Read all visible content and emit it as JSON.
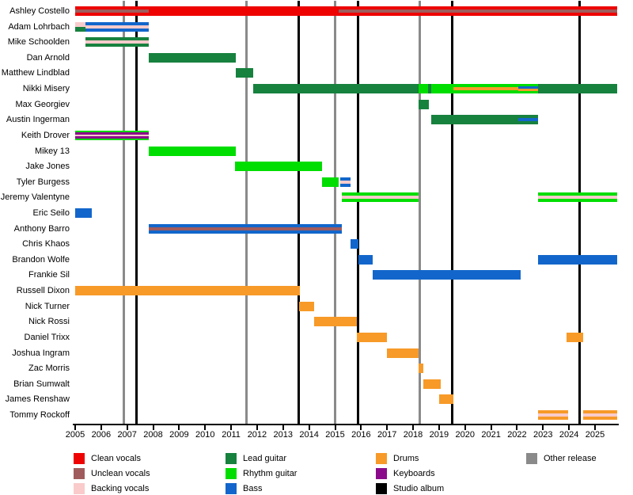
{
  "chart_data": {
    "type": "timeline",
    "description": "Band members timeline gantt chart, one row per member, colored bars for roles, vertical lines for releases",
    "x_axis": {
      "start": 2005,
      "end": 2025.85,
      "tick_years": [
        2005,
        2006,
        2007,
        2008,
        2009,
        2010,
        2011,
        2012,
        2013,
        2014,
        2015,
        2016,
        2017,
        2018,
        2019,
        2020,
        2021,
        2022,
        2023,
        2024,
        2025
      ],
      "grid": false
    },
    "roles": {
      "clean_vocals": {
        "label": "Clean vocals",
        "color": "#ee0202"
      },
      "unclean_vocals": {
        "label": "Unclean vocals",
        "color": "#a05c5c"
      },
      "backing_vocals": {
        "label": "Backing vocals",
        "color": "#f9cbcb"
      },
      "lead_guitar": {
        "label": "Lead guitar",
        "color": "#17813e"
      },
      "rhythm_guitar": {
        "label": "Rhythm guitar",
        "color": "#00dd00"
      },
      "bass": {
        "label": "Bass",
        "color": "#1266cb"
      },
      "drums": {
        "label": "Drums",
        "color": "#f79a28"
      },
      "keyboards": {
        "label": "Keyboards",
        "color": "#8b0a8b"
      },
      "studio_album": {
        "label": "Studio album",
        "color": "#000000"
      },
      "other_release": {
        "label": "Other release",
        "color": "#8a8a8a"
      }
    },
    "members": [
      {
        "name": "Ashley Costello",
        "segments": [
          {
            "start": 2005.0,
            "end": 2007.83,
            "layers": [
              "clean_vocals",
              "unclean_vocals",
              "clean_vocals"
            ]
          },
          {
            "start": 2007.83,
            "end": 2015.13,
            "layers": [
              "clean_vocals"
            ]
          },
          {
            "start": 2015.13,
            "end": 2025.85,
            "layers": [
              "clean_vocals",
              "unclean_vocals",
              "clean_vocals"
            ]
          }
        ]
      },
      {
        "name": "Adam Lohrbach",
        "segments": [
          {
            "start": 2005.0,
            "end": 2005.4,
            "layers": [
              "backing_vocals",
              "lead_guitar"
            ]
          },
          {
            "start": 2005.4,
            "end": 2007.83,
            "layers": [
              "bass",
              "backing_vocals",
              "bass"
            ]
          }
        ]
      },
      {
        "name": "Mike Schoolden",
        "segments": [
          {
            "start": 2005.4,
            "end": 2007.83,
            "layers": [
              "lead_guitar",
              "backing_vocals",
              "lead_guitar"
            ]
          }
        ]
      },
      {
        "name": "Dan Arnold",
        "segments": [
          {
            "start": 2007.83,
            "end": 2011.18,
            "layers": [
              "lead_guitar"
            ]
          }
        ]
      },
      {
        "name": "Matthew Lindblad",
        "segments": [
          {
            "start": 2011.18,
            "end": 2011.85,
            "layers": [
              "lead_guitar"
            ]
          }
        ]
      },
      {
        "name": "Nikki Misery",
        "segments": [
          {
            "start": 2011.85,
            "end": 2018.2,
            "layers": [
              "lead_guitar"
            ]
          },
          {
            "start": 2018.2,
            "end": 2018.58,
            "layers": [
              "rhythm_guitar"
            ]
          },
          {
            "start": 2018.58,
            "end": 2018.7,
            "layers": [
              "lead_guitar"
            ]
          },
          {
            "start": 2018.7,
            "end": 2019.55,
            "layers": [
              "rhythm_guitar"
            ]
          },
          {
            "start": 2019.55,
            "end": 2022.05,
            "layers": [
              "rhythm_guitar",
              "drums",
              "rhythm_guitar"
            ]
          },
          {
            "start": 2022.05,
            "end": 2022.8,
            "layers": [
              "rhythm_guitar",
              "bass",
              "drums",
              "rhythm_guitar"
            ]
          },
          {
            "start": 2022.8,
            "end": 2025.85,
            "layers": [
              "lead_guitar"
            ]
          }
        ]
      },
      {
        "name": "Max Georgiev",
        "segments": [
          {
            "start": 2018.2,
            "end": 2018.6,
            "layers": [
              "lead_guitar"
            ]
          }
        ]
      },
      {
        "name": "Austin Ingerman",
        "segments": [
          {
            "start": 2018.7,
            "end": 2022.05,
            "layers": [
              "lead_guitar"
            ]
          },
          {
            "start": 2022.05,
            "end": 2022.8,
            "layers": [
              "lead_guitar",
              "bass",
              "lead_guitar"
            ]
          }
        ]
      },
      {
        "name": "Keith Drover",
        "segments": [
          {
            "start": 2005.0,
            "end": 2007.83,
            "layers": [
              "rhythm_guitar",
              "keyboards",
              "backing_vocals",
              "keyboards",
              "rhythm_guitar"
            ]
          }
        ]
      },
      {
        "name": "Mikey 13",
        "segments": [
          {
            "start": 2007.83,
            "end": 2011.18,
            "layers": [
              "rhythm_guitar"
            ]
          }
        ]
      },
      {
        "name": "Jake Jones",
        "segments": [
          {
            "start": 2011.15,
            "end": 2014.5,
            "layers": [
              "rhythm_guitar"
            ]
          }
        ]
      },
      {
        "name": "Tyler Burgess",
        "segments": [
          {
            "start": 2014.5,
            "end": 2015.15,
            "layers": [
              "rhythm_guitar"
            ]
          },
          {
            "start": 2015.2,
            "end": 2015.6,
            "layers": [
              "bass",
              "backing_vocals",
              "bass"
            ]
          }
        ]
      },
      {
        "name": "Jeremy Valentyne",
        "segments": [
          {
            "start": 2015.25,
            "end": 2018.2,
            "layers": [
              "rhythm_guitar",
              "backing_vocals",
              "rhythm_guitar"
            ]
          },
          {
            "start": 2022.8,
            "end": 2025.85,
            "layers": [
              "rhythm_guitar",
              "backing_vocals",
              "rhythm_guitar"
            ]
          }
        ]
      },
      {
        "name": "Eric Seilo",
        "segments": [
          {
            "start": 2005.0,
            "end": 2005.65,
            "layers": [
              "bass"
            ]
          }
        ]
      },
      {
        "name": "Anthony Barro",
        "segments": [
          {
            "start": 2007.83,
            "end": 2015.25,
            "layers": [
              "bass",
              "unclean_vocals",
              "bass"
            ]
          }
        ]
      },
      {
        "name": "Chris Khaos",
        "segments": [
          {
            "start": 2015.6,
            "end": 2015.9,
            "layers": [
              "bass"
            ]
          }
        ]
      },
      {
        "name": "Brandon Wolfe",
        "segments": [
          {
            "start": 2015.9,
            "end": 2016.45,
            "layers": [
              "bass"
            ]
          },
          {
            "start": 2022.8,
            "end": 2025.85,
            "layers": [
              "bass"
            ]
          }
        ]
      },
      {
        "name": "Frankie Sil",
        "segments": [
          {
            "start": 2016.45,
            "end": 2022.15,
            "layers": [
              "bass"
            ]
          }
        ]
      },
      {
        "name": "Russell Dixon",
        "segments": [
          {
            "start": 2005.0,
            "end": 2013.65,
            "layers": [
              "drums"
            ]
          }
        ]
      },
      {
        "name": "Nick Turner",
        "segments": [
          {
            "start": 2013.6,
            "end": 2014.2,
            "layers": [
              "drums"
            ]
          }
        ]
      },
      {
        "name": "Nick Rossi",
        "segments": [
          {
            "start": 2014.2,
            "end": 2015.85,
            "layers": [
              "drums"
            ]
          }
        ]
      },
      {
        "name": "Daniel Trixx",
        "segments": [
          {
            "start": 2015.85,
            "end": 2017.0,
            "layers": [
              "drums"
            ]
          },
          {
            "start": 2023.9,
            "end": 2024.55,
            "layers": [
              "drums"
            ]
          }
        ]
      },
      {
        "name": "Joshua Ingram",
        "segments": [
          {
            "start": 2017.0,
            "end": 2018.2,
            "layers": [
              "drums"
            ]
          }
        ]
      },
      {
        "name": "Zac Morris",
        "segments": [
          {
            "start": 2018.2,
            "end": 2018.4,
            "layers": [
              "drums"
            ]
          }
        ]
      },
      {
        "name": "Brian Sumwalt",
        "segments": [
          {
            "start": 2018.4,
            "end": 2019.05,
            "layers": [
              "drums"
            ]
          }
        ]
      },
      {
        "name": "James Renshaw",
        "segments": [
          {
            "start": 2019.0,
            "end": 2019.55,
            "layers": [
              "drums"
            ]
          }
        ]
      },
      {
        "name": "Tommy Rockoff",
        "segments": [
          {
            "start": 2022.8,
            "end": 2023.97,
            "layers": [
              "drums",
              "backing_vocals",
              "drums"
            ]
          },
          {
            "start": 2024.55,
            "end": 2025.85,
            "layers": [
              "drums",
              "backing_vocals",
              "drums"
            ]
          }
        ]
      }
    ],
    "releases": [
      {
        "year": 2006.87,
        "type": "other_release"
      },
      {
        "year": 2007.35,
        "type": "studio_album"
      },
      {
        "year": 2011.6,
        "type": "other_release"
      },
      {
        "year": 2013.6,
        "type": "studio_album"
      },
      {
        "year": 2015.0,
        "type": "other_release"
      },
      {
        "year": 2015.87,
        "type": "studio_album"
      },
      {
        "year": 2018.25,
        "type": "other_release"
      },
      {
        "year": 2019.5,
        "type": "studio_album"
      },
      {
        "year": 2024.4,
        "type": "studio_album"
      }
    ],
    "legend": {
      "columns": [
        [
          "clean_vocals",
          "unclean_vocals",
          "backing_vocals"
        ],
        [
          "lead_guitar",
          "rhythm_guitar",
          "bass"
        ],
        [
          "drums",
          "keyboards",
          "studio_album"
        ],
        [
          "other_release"
        ]
      ]
    }
  }
}
